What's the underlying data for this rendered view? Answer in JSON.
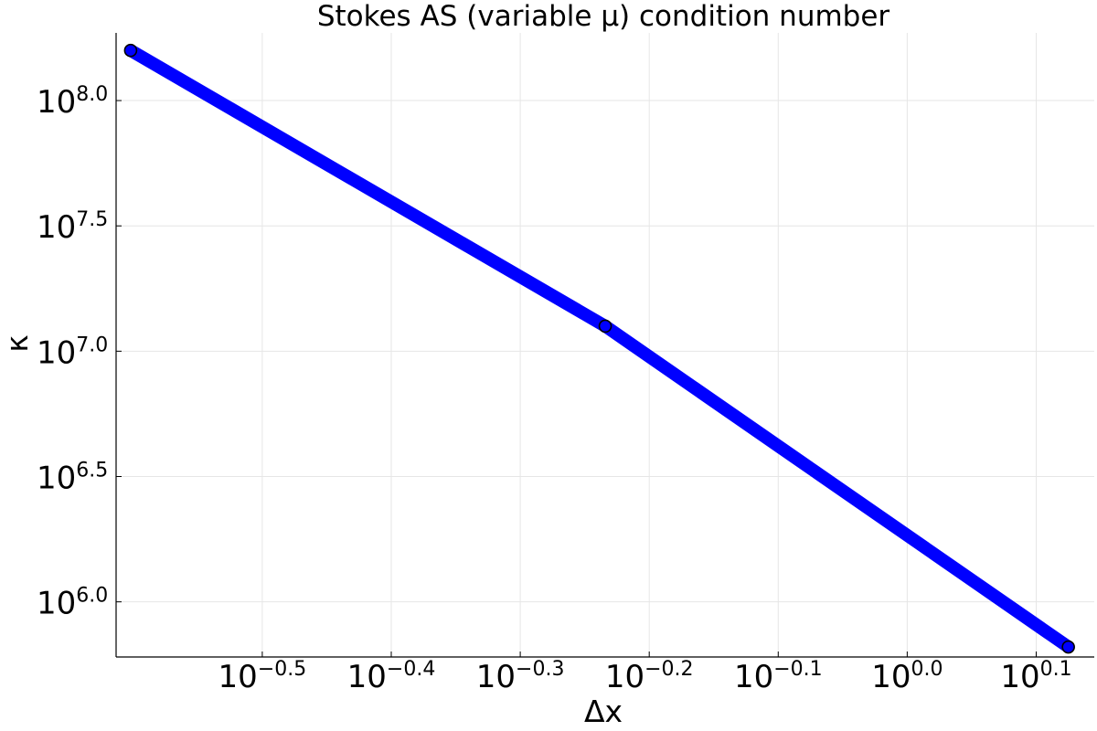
{
  "chart_data": {
    "type": "line",
    "title": "Stokes AS (variable μ) condition number",
    "xlabel": "Δx",
    "ylabel": "κ",
    "x_scale": "log10",
    "y_scale": "log10",
    "xlim": [
      0.2436,
      1.3964
    ],
    "ylim": [
      602560,
      186208714
    ],
    "grid": true,
    "legend": "none",
    "x_ticks": [
      {
        "base": "10",
        "exp": "−0.5",
        "value": 0.31623
      },
      {
        "base": "10",
        "exp": "−0.4",
        "value": 0.39811
      },
      {
        "base": "10",
        "exp": "−0.3",
        "value": 0.50119
      },
      {
        "base": "10",
        "exp": "−0.2",
        "value": 0.63096
      },
      {
        "base": "10",
        "exp": "−0.1",
        "value": 0.79433
      },
      {
        "base": "10",
        "exp": "0.0",
        "value": 1.0
      },
      {
        "base": "10",
        "exp": "0.1",
        "value": 1.25893
      }
    ],
    "y_ticks": [
      {
        "base": "10",
        "exp": "6.0",
        "value": 1000000
      },
      {
        "base": "10",
        "exp": "6.5",
        "value": 3162278
      },
      {
        "base": "10",
        "exp": "7.0",
        "value": 10000000
      },
      {
        "base": "10",
        "exp": "7.5",
        "value": 31622777
      },
      {
        "base": "10",
        "exp": "8.0",
        "value": 100000000
      }
    ],
    "series": [
      {
        "color": "#0000ff",
        "marker_color": "#0000ff",
        "x": [
          0.25,
          0.5833,
          1.3333
        ],
        "y": [
          158489319,
          12589254,
          660693
        ]
      }
    ]
  }
}
